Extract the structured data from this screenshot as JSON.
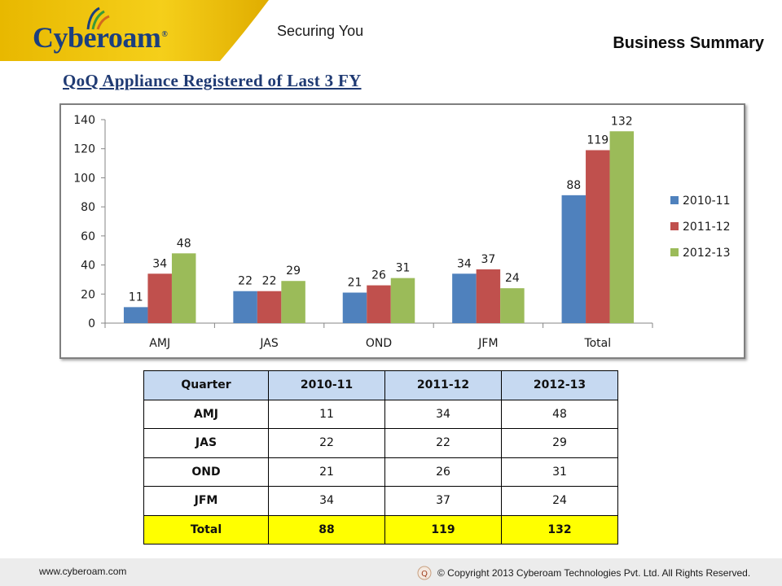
{
  "header": {
    "logo_text": "Cyberoam",
    "logo_reg": "®",
    "tagline": "Securing You",
    "section": "Business Summary"
  },
  "slide": {
    "title": "QoQ Appliance Registered of Last 3 FY"
  },
  "colors": {
    "header_yellow": "#f2c500",
    "series_2010_11": "#4f81bd",
    "series_2011_12": "#c0504d",
    "series_2012_13": "#9bbb59",
    "table_header": "#c6d9f1",
    "total_row": "#ffff00"
  },
  "chart_data": {
    "type": "bar",
    "title": "",
    "xlabel": "",
    "ylabel": "",
    "categories": [
      "AMJ",
      "JAS",
      "OND",
      "JFM",
      "Total"
    ],
    "series": [
      {
        "name": "2010-11",
        "values": [
          11,
          22,
          21,
          34,
          88
        ],
        "color": "#4f81bd"
      },
      {
        "name": "2011-12",
        "values": [
          34,
          22,
          26,
          37,
          119
        ],
        "color": "#c0504d"
      },
      {
        "name": "2012-13",
        "values": [
          48,
          29,
          31,
          24,
          132
        ],
        "color": "#9bbb59"
      }
    ],
    "ylim": [
      0,
      140
    ],
    "yticks": [
      0,
      20,
      40,
      60,
      80,
      100,
      120,
      140
    ],
    "grid": false,
    "legend": "right",
    "data_labels": true
  },
  "table": {
    "headers": [
      "Quarter",
      "2010-11",
      "2011-12",
      "2012-13"
    ],
    "rows": [
      {
        "quarter": "AMJ",
        "values": [
          "11",
          "34",
          "48"
        ]
      },
      {
        "quarter": "JAS",
        "values": [
          "22",
          "22",
          "29"
        ]
      },
      {
        "quarter": "OND",
        "values": [
          "21",
          "26",
          "31"
        ]
      },
      {
        "quarter": "JFM",
        "values": [
          "34",
          "37",
          "24"
        ]
      }
    ],
    "total": {
      "quarter": "Total",
      "values": [
        "88",
        "119",
        "132"
      ]
    }
  },
  "footer": {
    "url": "www.cyberoam.com",
    "copyright": "© Copyright 2013 Cyberoam Technologies Pvt. Ltd. All Rights Reserved."
  }
}
